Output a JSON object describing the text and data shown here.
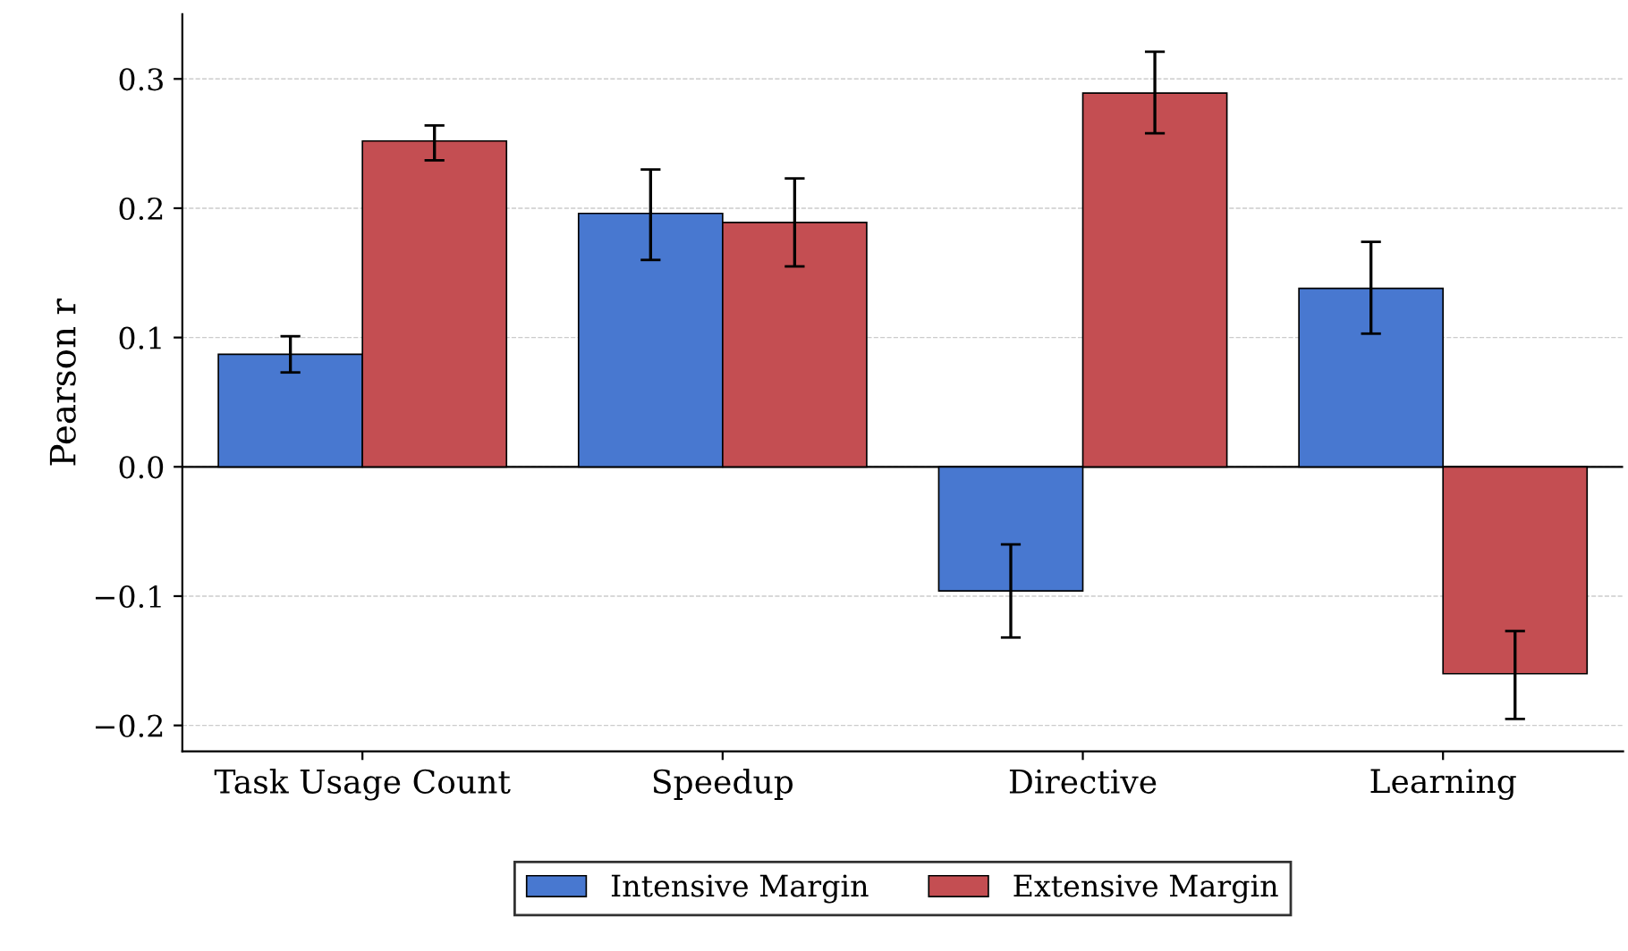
{
  "chart_data": {
    "type": "bar",
    "ylabel": "Pearson r",
    "categories": [
      "Task Usage Count",
      "Speedup",
      "Directive",
      "Learning"
    ],
    "series": [
      {
        "name": "Intensive Margin",
        "color": "#4878d0",
        "values": [
          0.087,
          0.196,
          -0.096,
          0.138
        ],
        "errors": [
          [
            0.073,
            0.101
          ],
          [
            0.16,
            0.23
          ],
          [
            -0.132,
            -0.06
          ],
          [
            0.103,
            0.174
          ]
        ]
      },
      {
        "name": "Extensive Margin",
        "color": "#c44e52",
        "values": [
          0.252,
          0.189,
          0.289,
          -0.16
        ],
        "errors": [
          [
            0.237,
            0.264
          ],
          [
            0.155,
            0.223
          ],
          [
            0.258,
            0.321
          ],
          [
            -0.195,
            -0.127
          ]
        ]
      }
    ],
    "ylim": [
      -0.22,
      0.35
    ],
    "yticks": [
      {
        "value": -0.2,
        "label": "−0.2"
      },
      {
        "value": -0.1,
        "label": "−0.1"
      },
      "0.0",
      "0.1",
      "0.2",
      "0.3"
    ],
    "grid": "y",
    "legend": "bottom",
    "ref_lines": [
      {
        "axis": "y",
        "value": 0,
        "color": "#000000",
        "line_style": "solid"
      }
    ]
  }
}
